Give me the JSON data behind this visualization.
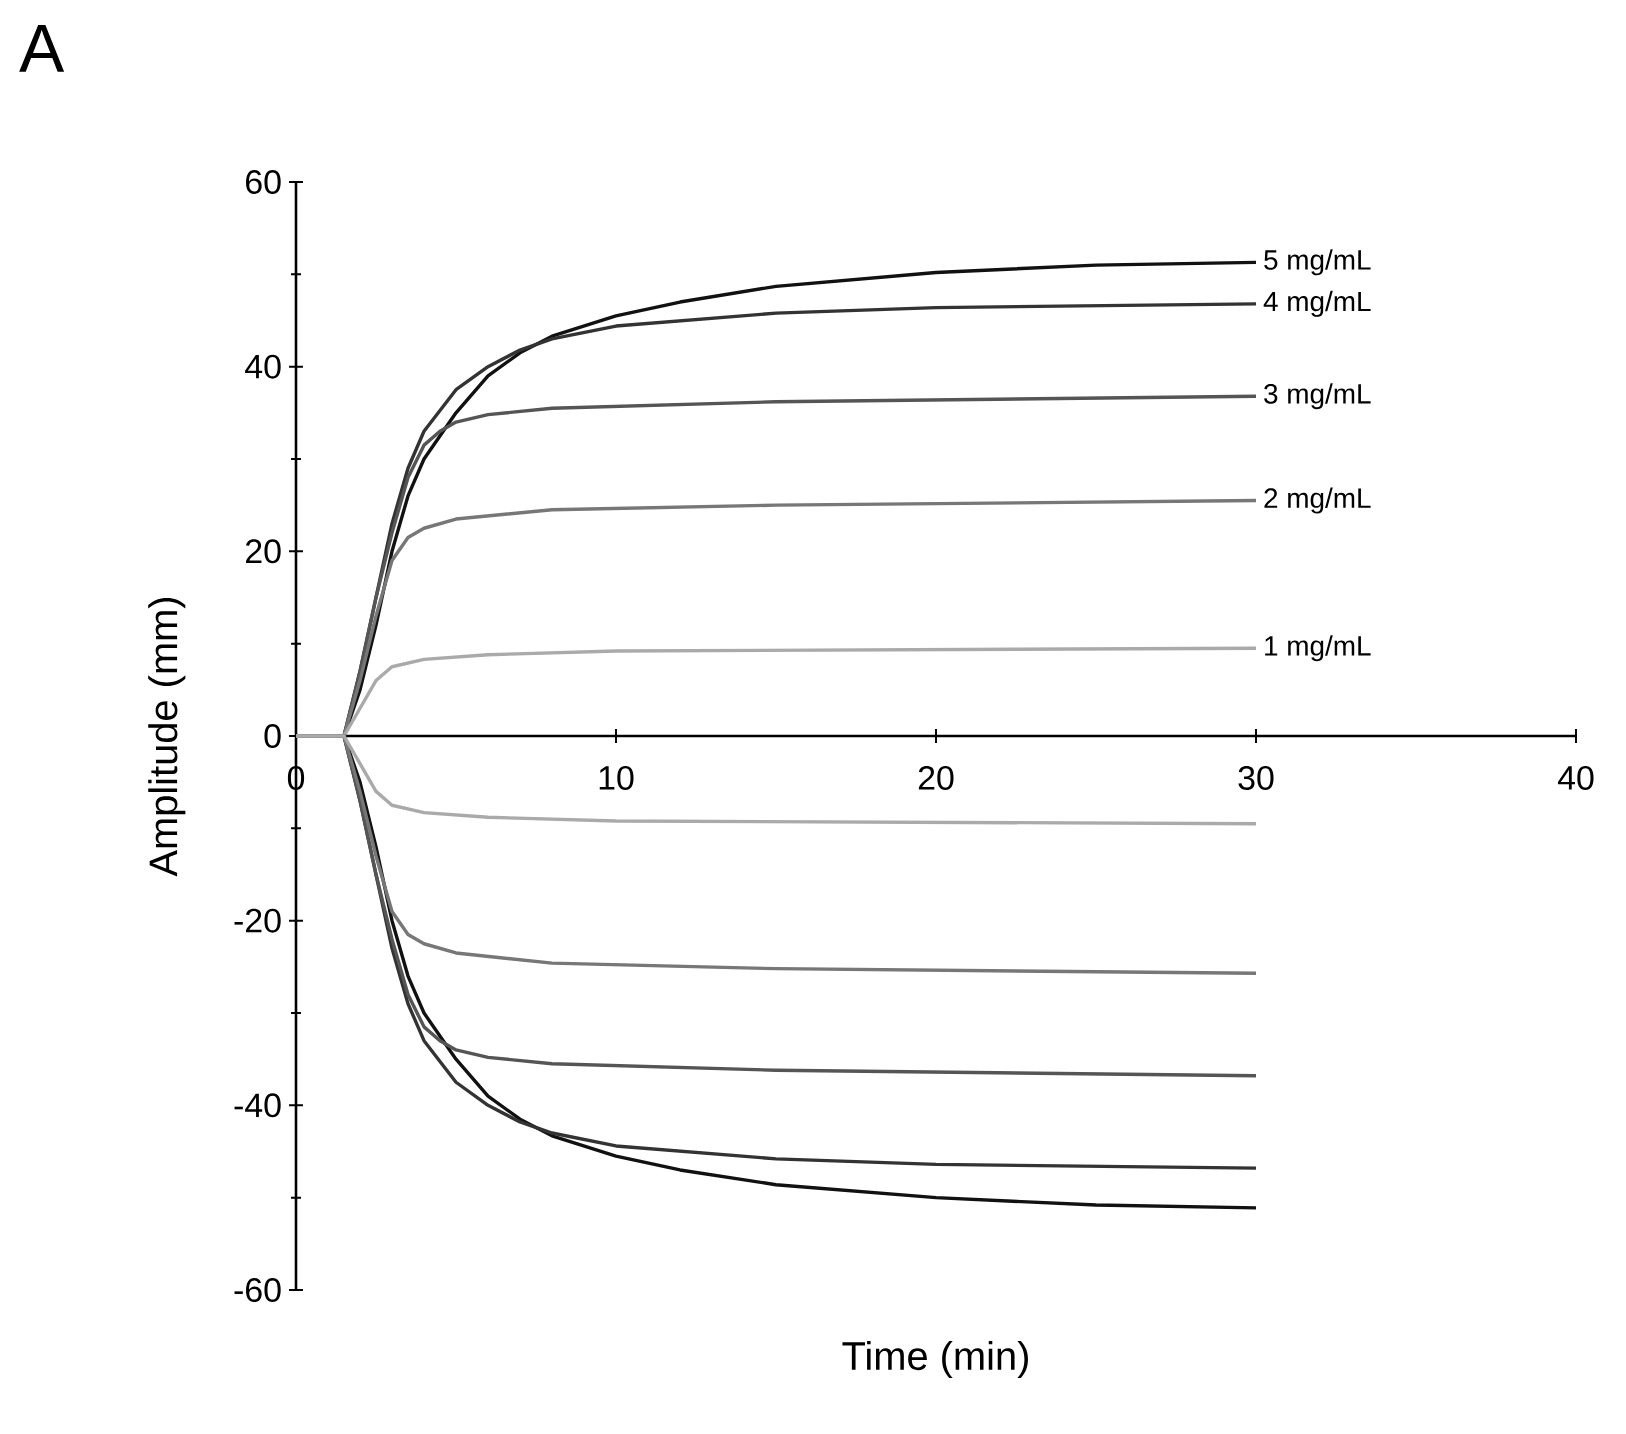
{
  "chart_data": {
    "type": "line",
    "xlabel": "Time (min)",
    "ylabel": "Amplitude (mm)",
    "annotations": [
      "A"
    ],
    "xlim": [
      0,
      40
    ],
    "ylim": [
      -60,
      60
    ],
    "xticks": [
      0,
      10,
      20,
      30,
      40
    ],
    "yticks": [
      -60,
      -40,
      -20,
      0,
      20,
      40,
      60
    ],
    "series": [
      {
        "name": "5 mg/mL",
        "color": "#111111",
        "x": [
          0,
          1.5,
          2,
          2.5,
          3,
          3.5,
          4,
          5,
          6,
          7,
          8,
          10,
          12,
          15,
          20,
          25,
          30
        ],
        "values": [
          0,
          0,
          5,
          12,
          20,
          26,
          30,
          35,
          39,
          41.5,
          43.3,
          45.5,
          47,
          48.7,
          50.2,
          51,
          51.3
        ]
      },
      {
        "name": "4 mg/mL",
        "color": "#333333",
        "x": [
          0,
          1.5,
          2,
          2.5,
          3,
          3.5,
          4,
          5,
          6,
          7,
          8,
          10,
          15,
          20,
          30
        ],
        "values": [
          0,
          0,
          7,
          15,
          23,
          29,
          33,
          37.5,
          40,
          41.8,
          43,
          44.4,
          45.8,
          46.4,
          46.8
        ]
      },
      {
        "name": "3 mg/mL",
        "color": "#555555",
        "x": [
          0,
          1.5,
          2,
          2.5,
          3,
          3.5,
          4,
          4.5,
          5,
          6,
          8,
          15,
          30
        ],
        "values": [
          0,
          0,
          7,
          15,
          22,
          28,
          31.5,
          33,
          34,
          34.8,
          35.5,
          36.2,
          36.8
        ]
      },
      {
        "name": "2 mg/mL",
        "color": "#777777",
        "x": [
          0,
          1.5,
          2,
          2.5,
          3,
          3.5,
          4,
          5,
          8,
          15,
          30
        ],
        "values": [
          0,
          0,
          6,
          13,
          19,
          21.5,
          22.5,
          23.5,
          24.5,
          25,
          25.5
        ]
      },
      {
        "name": "1 mg/mL",
        "color": "#aaaaaa",
        "x": [
          0,
          1.5,
          2,
          2.5,
          3,
          4,
          6,
          10,
          30
        ],
        "values": [
          0,
          0,
          3,
          6,
          7.5,
          8.3,
          8.8,
          9.2,
          9.5
        ]
      },
      {
        "color": "#111111",
        "x": [
          0,
          1.5,
          2,
          2.5,
          3,
          3.5,
          4,
          5,
          6,
          7,
          8,
          10,
          12,
          15,
          20,
          25,
          30
        ],
        "values": [
          0,
          0,
          -5,
          -12,
          -20,
          -26,
          -30,
          -35,
          -39,
          -41.5,
          -43.3,
          -45.5,
          -47,
          -48.6,
          -50,
          -50.8,
          -51.1
        ]
      },
      {
        "color": "#333333",
        "x": [
          0,
          1.5,
          2,
          2.5,
          3,
          3.5,
          4,
          5,
          6,
          7,
          8,
          10,
          15,
          20,
          30
        ],
        "values": [
          0,
          0,
          -7,
          -15,
          -23,
          -29,
          -33,
          -37.5,
          -40,
          -41.8,
          -43,
          -44.4,
          -45.8,
          -46.4,
          -46.8
        ]
      },
      {
        "color": "#555555",
        "x": [
          0,
          1.5,
          2,
          2.5,
          3,
          3.5,
          4,
          4.5,
          5,
          6,
          8,
          15,
          30
        ],
        "values": [
          0,
          0,
          -7,
          -15,
          -22,
          -28,
          -31.5,
          -33,
          -34,
          -34.8,
          -35.5,
          -36.2,
          -36.8
        ]
      },
      {
        "color": "#777777",
        "x": [
          0,
          1.5,
          2,
          2.5,
          3,
          3.5,
          4,
          5,
          8,
          15,
          30
        ],
        "values": [
          0,
          0,
          -6,
          -13,
          -19,
          -21.5,
          -22.5,
          -23.5,
          -24.6,
          -25.2,
          -25.7
        ]
      },
      {
        "color": "#aaaaaa",
        "x": [
          0,
          1.5,
          2,
          2.5,
          3,
          4,
          6,
          10,
          30
        ],
        "values": [
          0,
          0,
          -3,
          -6,
          -7.5,
          -8.3,
          -8.8,
          -9.2,
          -9.5
        ]
      }
    ]
  }
}
